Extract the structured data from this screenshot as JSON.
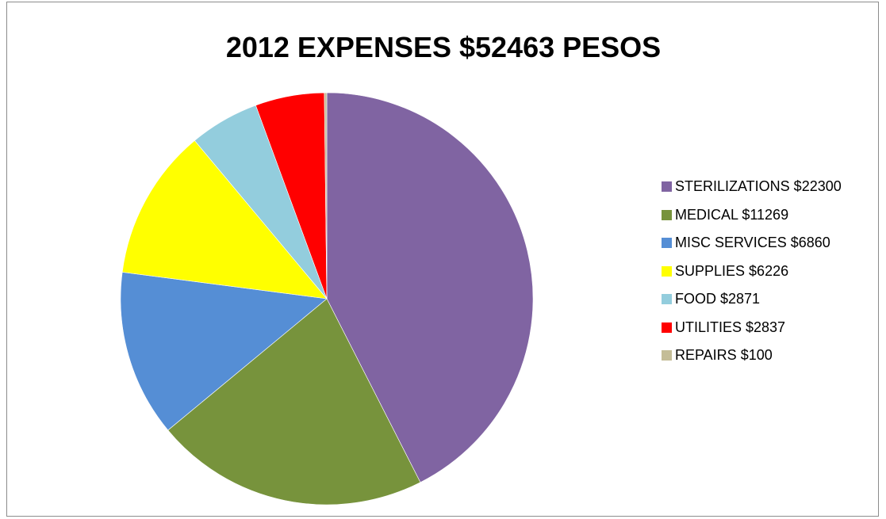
{
  "chart_data": {
    "type": "pie",
    "title": "2012 EXPENSES $52463 PESOS",
    "legend_position": "right",
    "slices": [
      {
        "label": "STERILIZATIONS  $22300",
        "value": 22300,
        "color": "#8064a2"
      },
      {
        "label": "MEDICAL  $11269",
        "value": 11269,
        "color": "#77933c"
      },
      {
        "label": "MISC SERVICES  $6860",
        "value": 6860,
        "color": "#558ed5"
      },
      {
        "label": "SUPPLIES  $6226",
        "value": 6226,
        "color": "#ffff00"
      },
      {
        "label": "FOOD  $2871",
        "value": 2871,
        "color": "#93cddd"
      },
      {
        "label": "UTILITIES  $2837",
        "value": 2837,
        "color": "#ff0000"
      },
      {
        "label": "REPAIRS  $100",
        "value": 100,
        "color": "#c4bd97"
      }
    ]
  }
}
